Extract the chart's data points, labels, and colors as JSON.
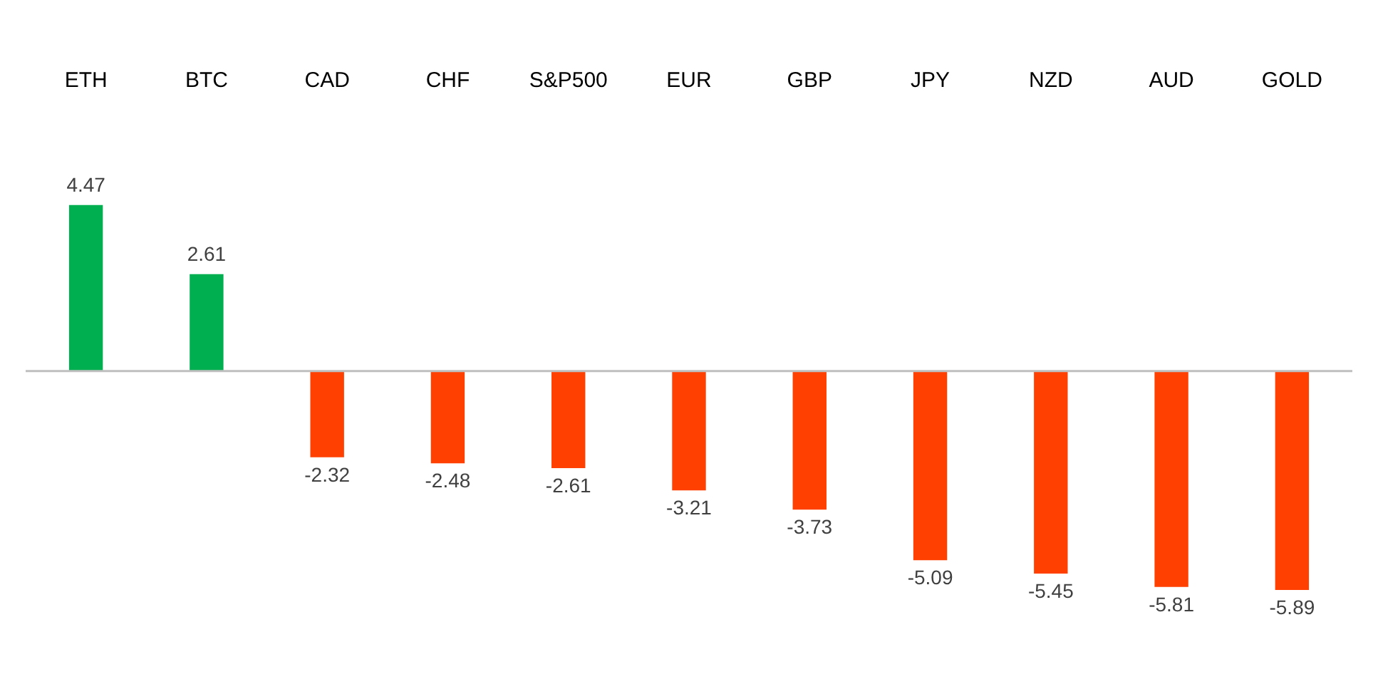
{
  "chart_data": {
    "type": "bar",
    "categories": [
      "ETH",
      "BTC",
      "CAD",
      "CHF",
      "S&P500",
      "EUR",
      "GBP",
      "JPY",
      "NZD",
      "AUD",
      "GOLD"
    ],
    "values": [
      4.47,
      2.61,
      -2.32,
      -2.48,
      -2.61,
      -3.21,
      -3.73,
      -5.09,
      -5.45,
      -5.81,
      -5.89
    ],
    "colors": [
      "#00b050",
      "#00b050",
      "#ff4000",
      "#ff4000",
      "#ff4000",
      "#ff4000",
      "#ff4000",
      "#ff4000",
      "#ff4000",
      "#ff4000",
      "#ff4000"
    ],
    "data_labels": true
  }
}
